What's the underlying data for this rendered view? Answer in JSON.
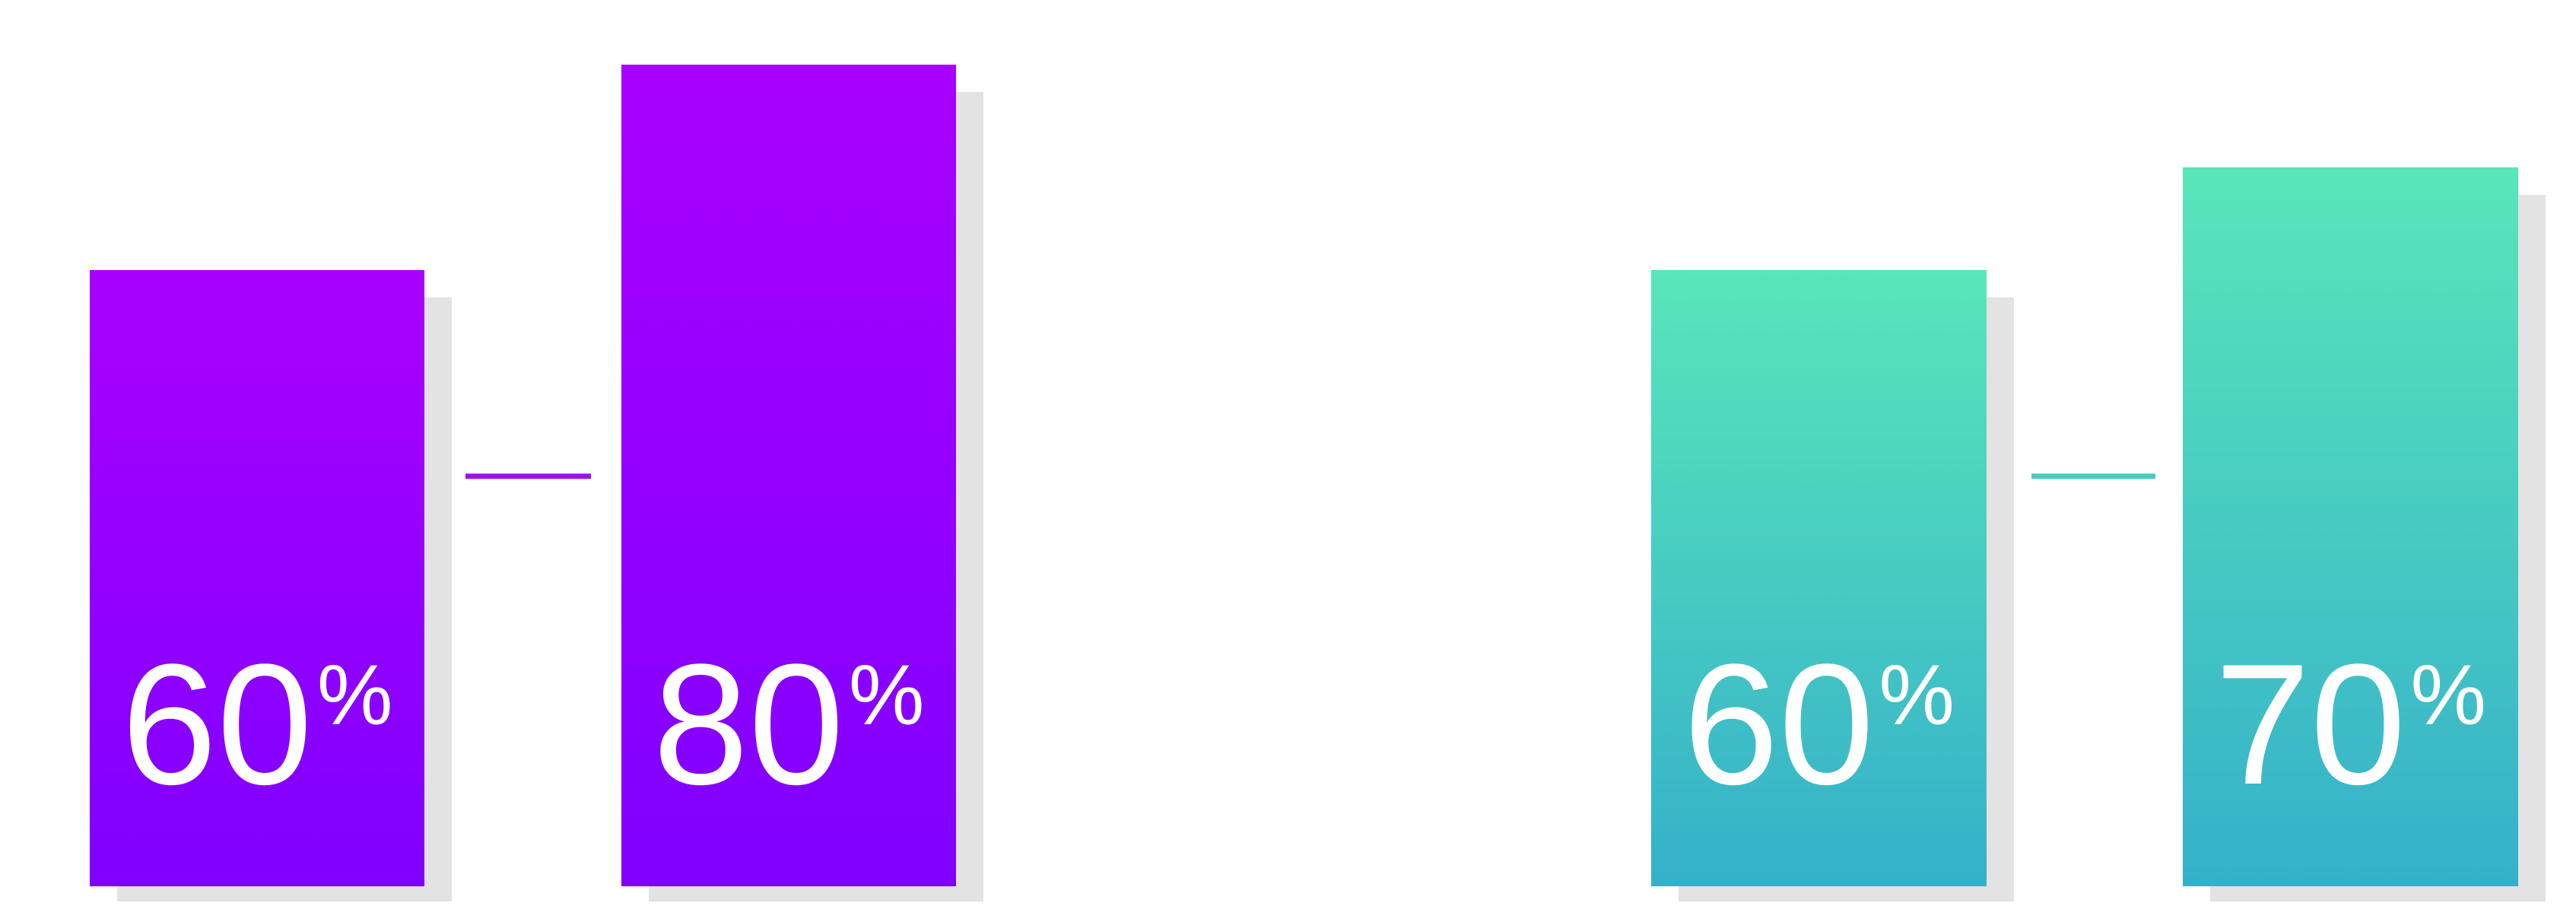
{
  "chart_data": [
    {
      "type": "bar",
      "title": "",
      "xlabel": "",
      "ylabel": "",
      "ylim": [
        0,
        100
      ],
      "grid": false,
      "legend": "none",
      "colors": {
        "top": "#A800FF",
        "bottom": "#8000FF",
        "connector": "#9B12F0"
      },
      "categories": [
        "",
        ""
      ],
      "values": [
        60,
        80
      ],
      "labels": [
        {
          "number": "60",
          "unit": "%"
        },
        {
          "number": "80",
          "unit": "%"
        }
      ]
    },
    {
      "type": "bar",
      "title": "",
      "xlabel": "",
      "ylabel": "",
      "ylim": [
        0,
        100
      ],
      "grid": false,
      "legend": "none",
      "colors": {
        "top": "#59E6B9",
        "bottom": "#35B0CA",
        "connector": "#45CDBF"
      },
      "categories": [
        "",
        ""
      ],
      "values": [
        60,
        70
      ],
      "labels": [
        {
          "number": "60",
          "unit": "%"
        },
        {
          "number": "70",
          "unit": "%"
        }
      ]
    }
  ]
}
